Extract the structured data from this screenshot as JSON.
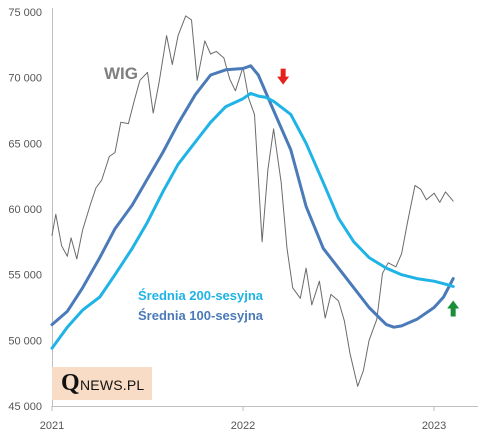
{
  "colors": {
    "wig": "#6b6b6b",
    "ma100": "#4a7ab8",
    "ma200": "#1fb3e6",
    "sell_arrow": "#e8221b",
    "buy_arrow": "#1a8f3a",
    "logo_bg": "#f9dcc6"
  },
  "icons": {
    "sell_signal": "red-down-arrow-icon",
    "buy_signal": "green-up-arrow-icon"
  },
  "logo": {
    "q": "Q",
    "rest": "NEWS.PL"
  },
  "chart_data": {
    "type": "line",
    "title": "WIG",
    "xlabel": "",
    "ylabel": "",
    "ylim": [
      45000,
      75000
    ],
    "xlim": [
      2021.0,
      2023.23
    ],
    "y_ticks": [
      "45 000",
      "50 000",
      "55 000",
      "60 000",
      "65 000",
      "70 000",
      "75 000"
    ],
    "y_tick_values": [
      45000,
      50000,
      55000,
      60000,
      65000,
      70000,
      75000
    ],
    "x_ticks": [
      "2021",
      "2022",
      "2023"
    ],
    "x_tick_values": [
      2021,
      2022,
      2023
    ],
    "grid": false,
    "legend": [
      "Średnia 200-sesyjna",
      "Średnia 100-sesyjna"
    ],
    "series": [
      {
        "name": "WIG",
        "x": [
          2021.0,
          2021.02,
          2021.05,
          2021.08,
          2021.1,
          2021.13,
          2021.16,
          2021.2,
          2021.23,
          2021.26,
          2021.3,
          2021.33,
          2021.36,
          2021.4,
          2021.43,
          2021.46,
          2021.5,
          2021.53,
          2021.56,
          2021.6,
          2021.63,
          2021.66,
          2021.7,
          2021.73,
          2021.76,
          2021.8,
          2021.83,
          2021.86,
          2021.9,
          2021.93,
          2021.96,
          2022.0,
          2022.03,
          2022.06,
          2022.1,
          2022.13,
          2022.16,
          2022.2,
          2022.23,
          2022.26,
          2022.3,
          2022.33,
          2022.36,
          2022.4,
          2022.43,
          2022.46,
          2022.5,
          2022.53,
          2022.56,
          2022.6,
          2022.63,
          2022.66,
          2022.7,
          2022.73,
          2022.76,
          2022.8,
          2022.83,
          2022.86,
          2022.9,
          2022.93,
          2022.96,
          2023.0,
          2023.03,
          2023.06,
          2023.1
        ],
        "values": [
          58000,
          59600,
          57200,
          56400,
          57800,
          56200,
          58400,
          60300,
          61600,
          62200,
          64000,
          64300,
          66600,
          66500,
          68200,
          69800,
          70400,
          67300,
          69600,
          73200,
          71000,
          73200,
          74700,
          74400,
          69800,
          72800,
          71800,
          72000,
          71500,
          69900,
          69000,
          70800,
          68400,
          67200,
          57500,
          63000,
          66100,
          62000,
          57000,
          54000,
          53200,
          55500,
          52700,
          54500,
          51700,
          53500,
          53000,
          51500,
          49000,
          46500,
          47700,
          50000,
          51600,
          55100,
          55900,
          55600,
          56600,
          58900,
          61800,
          61500,
          60700,
          61200,
          60500,
          61300,
          60600
        ]
      },
      {
        "name": "Średnia 100-sesyjna",
        "x": [
          2021.0,
          2021.08,
          2021.16,
          2021.25,
          2021.33,
          2021.42,
          2021.5,
          2021.58,
          2021.66,
          2021.75,
          2021.83,
          2021.91,
          2022.0,
          2022.04,
          2022.08,
          2022.16,
          2022.25,
          2022.33,
          2022.42,
          2022.5,
          2022.58,
          2022.66,
          2022.75,
          2022.79,
          2022.83,
          2022.91,
          2023.0,
          2023.05,
          2023.1
        ],
        "values": [
          51200,
          52200,
          54000,
          56300,
          58500,
          60300,
          62300,
          64300,
          66500,
          68700,
          70200,
          70600,
          70700,
          70900,
          70200,
          67500,
          64500,
          60200,
          57000,
          55500,
          54000,
          52500,
          51200,
          51000,
          51100,
          51600,
          52500,
          53300,
          54700
        ]
      },
      {
        "name": "Średnia 200-sesyjna",
        "x": [
          2021.0,
          2021.08,
          2021.16,
          2021.25,
          2021.33,
          2021.42,
          2021.5,
          2021.58,
          2021.66,
          2021.75,
          2021.83,
          2021.91,
          2022.0,
          2022.04,
          2022.08,
          2022.12,
          2022.16,
          2022.25,
          2022.33,
          2022.42,
          2022.5,
          2022.58,
          2022.66,
          2022.75,
          2022.83,
          2022.91,
          2023.0,
          2023.08,
          2023.1
        ],
        "values": [
          49400,
          51000,
          52300,
          53300,
          55000,
          57000,
          59000,
          61300,
          63400,
          65100,
          66600,
          67800,
          68400,
          68800,
          68600,
          68500,
          68200,
          67200,
          65000,
          62000,
          59300,
          57500,
          56300,
          55500,
          55000,
          54700,
          54500,
          54200,
          54100
        ]
      }
    ],
    "annotations": [
      {
        "type": "sell-arrow",
        "x": 2022.21,
        "y": 70000,
        "color": "#e8221b"
      },
      {
        "type": "buy-arrow",
        "x": 2023.1,
        "y": 52500,
        "color": "#1a8f3a"
      }
    ]
  }
}
